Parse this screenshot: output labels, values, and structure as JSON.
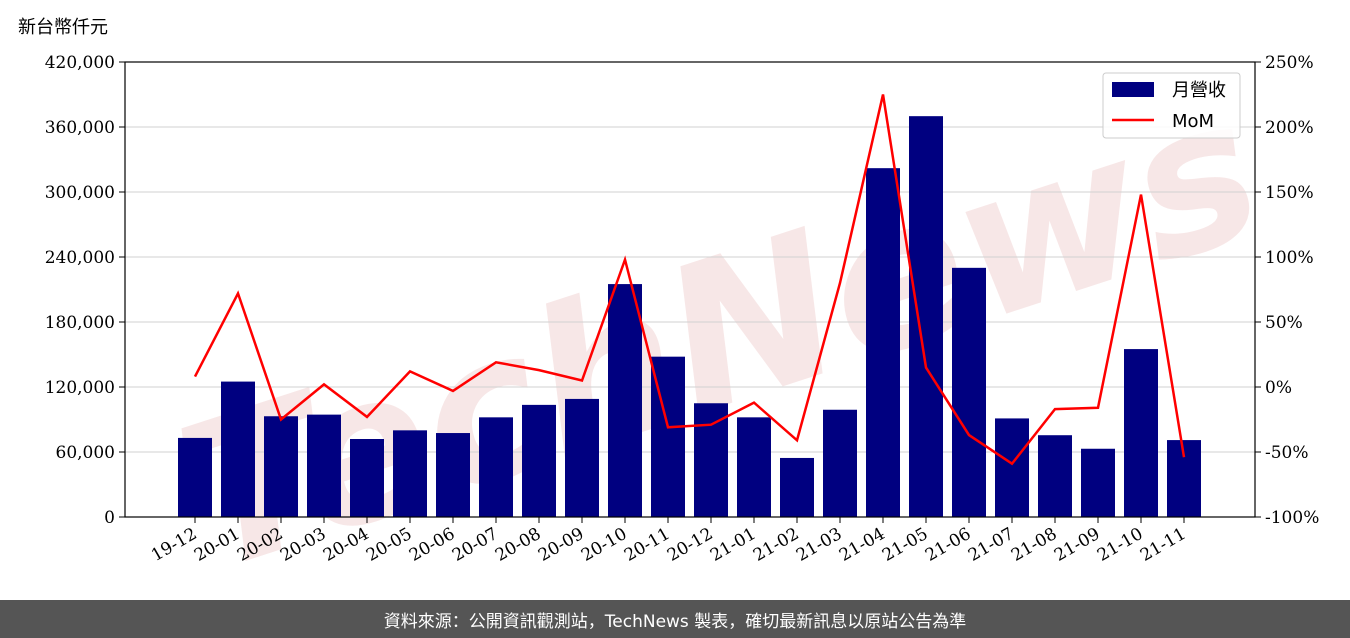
{
  "chart_data": {
    "type": "bar+line",
    "unit_label": "新台幣仟元",
    "categories": [
      "19-12",
      "20-01",
      "20-02",
      "20-03",
      "20-04",
      "20-05",
      "20-06",
      "20-07",
      "20-08",
      "20-09",
      "20-10",
      "20-11",
      "20-12",
      "21-01",
      "21-02",
      "21-03",
      "21-04",
      "21-05",
      "21-06",
      "21-07",
      "21-08",
      "21-09",
      "21-10",
      "21-11"
    ],
    "series": [
      {
        "name": "月營收",
        "type": "bar",
        "axis": "left",
        "color": "#000080",
        "values": [
          73000,
          125000,
          93000,
          94500,
          72000,
          80000,
          77500,
          92000,
          103500,
          109000,
          215000,
          148000,
          105000,
          92000,
          54500,
          99000,
          322000,
          370000,
          230000,
          91000,
          75500,
          63000,
          155000,
          71000
        ]
      },
      {
        "name": "MoM",
        "type": "line",
        "axis": "right",
        "color": "#ff0000",
        "values": [
          8,
          72,
          -25,
          2,
          -23,
          12,
          -3,
          19,
          13,
          5,
          98,
          -31,
          -29,
          -12,
          -41,
          80,
          225,
          15,
          -37,
          -59,
          -17,
          -16,
          148,
          -54
        ]
      }
    ],
    "y_left": {
      "min": 0,
      "max": 420000,
      "ticks": [
        0,
        60000,
        120000,
        180000,
        240000,
        300000,
        360000,
        420000
      ],
      "tick_labels": [
        "0",
        "60,000",
        "120,000",
        "180,000",
        "240,000",
        "300,000",
        "360,000",
        "420,000"
      ]
    },
    "y_right": {
      "min": -100,
      "max": 250,
      "ticks": [
        -100,
        -50,
        0,
        50,
        100,
        150,
        200,
        250
      ],
      "tick_labels": [
        "-100%",
        "-50%",
        "0%",
        "50%",
        "100%",
        "150%",
        "200%",
        "250%"
      ]
    },
    "grid": true,
    "legend": "top-right",
    "watermark": "TechNews"
  },
  "footer": {
    "text": "資料來源：公開資訊觀測站，TechNews 製表，確切最新訊息以原站公告為準"
  }
}
